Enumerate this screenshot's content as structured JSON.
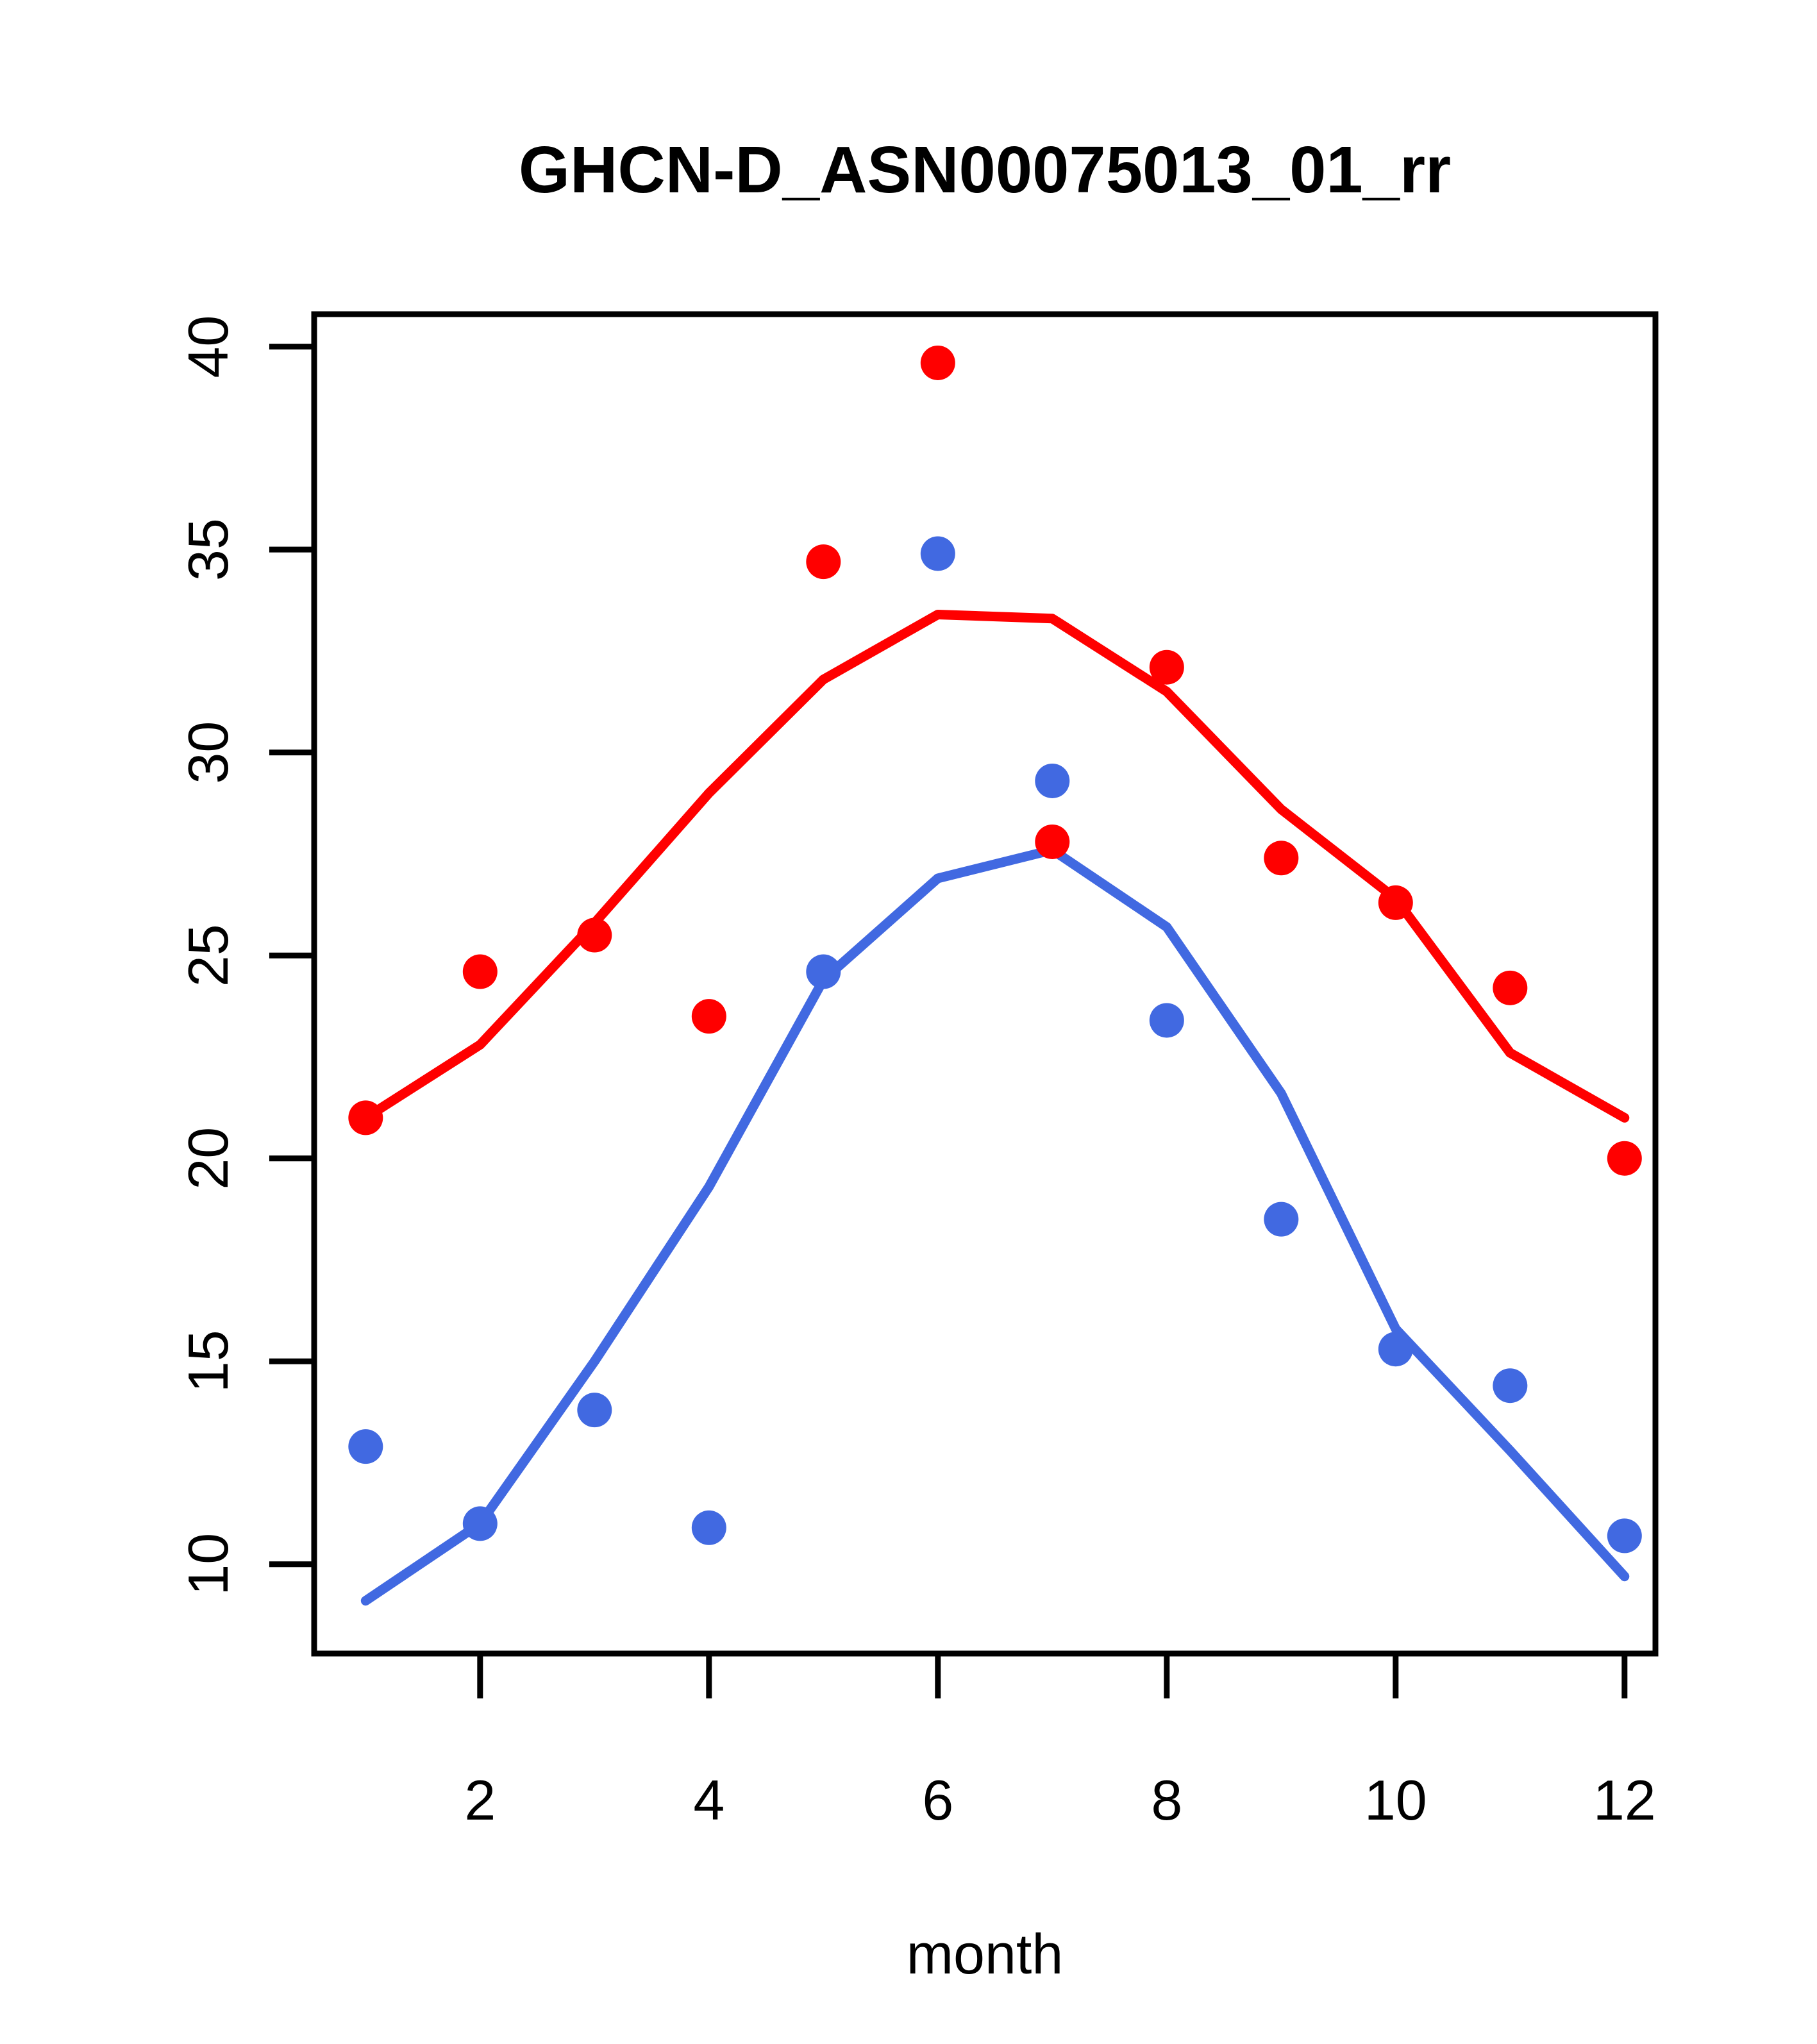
{
  "title": "GHCN-D_ASN00075013_01_rr",
  "chart_data": {
    "type": "scatter",
    "title": "GHCN-D_ASN00075013_01_rr",
    "xlabel": "month",
    "ylabel": "",
    "x": [
      1,
      2,
      3,
      4,
      5,
      6,
      7,
      8,
      9,
      10,
      11,
      12
    ],
    "x_ticks": [
      2,
      4,
      6,
      8,
      10,
      12
    ],
    "y_ticks": [
      10,
      15,
      20,
      25,
      30,
      35,
      40
    ],
    "xlim": [
      0.55,
      12.27
    ],
    "ylim": [
      7.8,
      40.8
    ],
    "grid": false,
    "legend": "none",
    "colors": {
      "red": "#FF0000",
      "blue": "#4169E1",
      "axis": "#000000"
    },
    "series": [
      {
        "name": "red-points",
        "style": "points",
        "color": "#FF0000",
        "values": [
          21.0,
          24.6,
          25.5,
          23.5,
          34.7,
          39.6,
          27.8,
          32.1,
          27.4,
          26.3,
          24.2,
          20.0
        ]
      },
      {
        "name": "blue-points",
        "style": "points",
        "color": "#4169E1",
        "values": [
          12.9,
          11.0,
          13.8,
          10.9,
          24.6,
          34.9,
          29.3,
          23.4,
          18.5,
          15.3,
          14.4,
          10.7
        ]
      },
      {
        "name": "red-smooth-line",
        "style": "line",
        "color": "#FF0000",
        "values": [
          21.0,
          22.8,
          25.8,
          29.0,
          31.8,
          33.4,
          33.3,
          31.5,
          28.6,
          26.4,
          22.6,
          21.0
        ]
      },
      {
        "name": "blue-smooth-line",
        "style": "line",
        "color": "#4169E1",
        "values": [
          9.1,
          11.0,
          15.0,
          19.3,
          24.4,
          26.9,
          27.6,
          25.7,
          21.6,
          15.8,
          12.8,
          9.7
        ]
      }
    ]
  }
}
